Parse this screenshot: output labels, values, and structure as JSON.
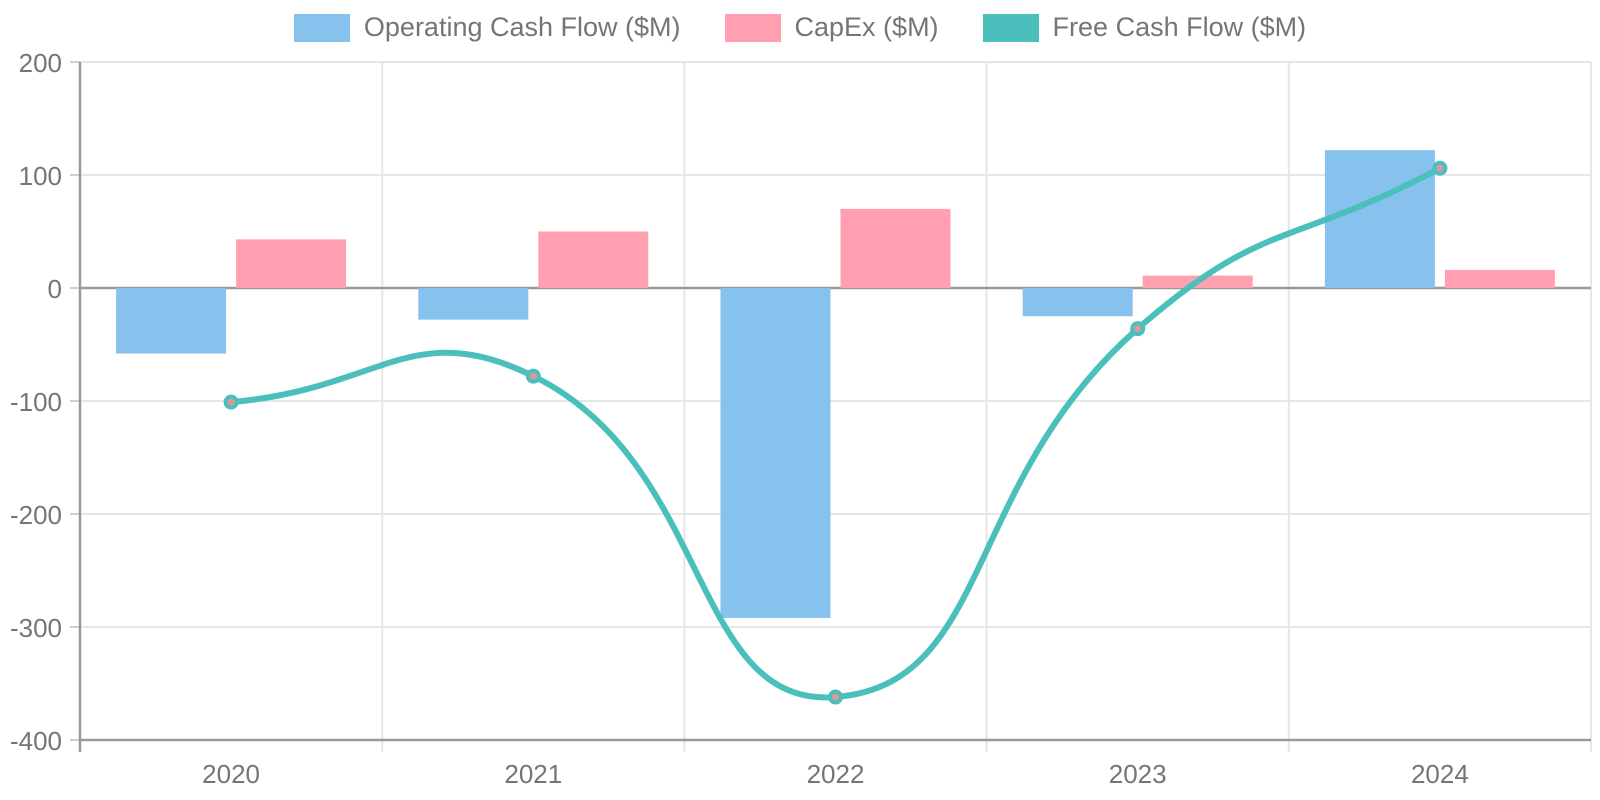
{
  "chart_data": {
    "type": "combo",
    "title": "",
    "xlabel": "",
    "ylabel": "",
    "categories": [
      "2020",
      "2021",
      "2022",
      "2023",
      "2024"
    ],
    "series": [
      {
        "name": "Operating Cash Flow ($M)",
        "type": "bar",
        "color": "#87C2EF",
        "values": [
          -58,
          -28,
          -292,
          -25,
          122
        ]
      },
      {
        "name": "CapEx ($M)",
        "type": "bar",
        "color": "#FF9FB0",
        "values": [
          43,
          50,
          70,
          11,
          16
        ]
      },
      {
        "name": "Free Cash Flow ($M)",
        "type": "line",
        "color": "#4ABFBC",
        "point_fill": "#DE989B",
        "values": [
          -101,
          -78,
          -362,
          -36,
          106
        ]
      }
    ],
    "ylim": [
      -400,
      200
    ],
    "y_ticks": [
      200,
      100,
      0,
      -100,
      -200,
      -300,
      -400
    ],
    "grid": true,
    "legend_position": "top",
    "colors": {
      "axis": "#999999",
      "grid": "#E6E6E6",
      "tick_stub": "#CFCFCF",
      "label": "#757575",
      "background": "#FFFFFF"
    }
  }
}
